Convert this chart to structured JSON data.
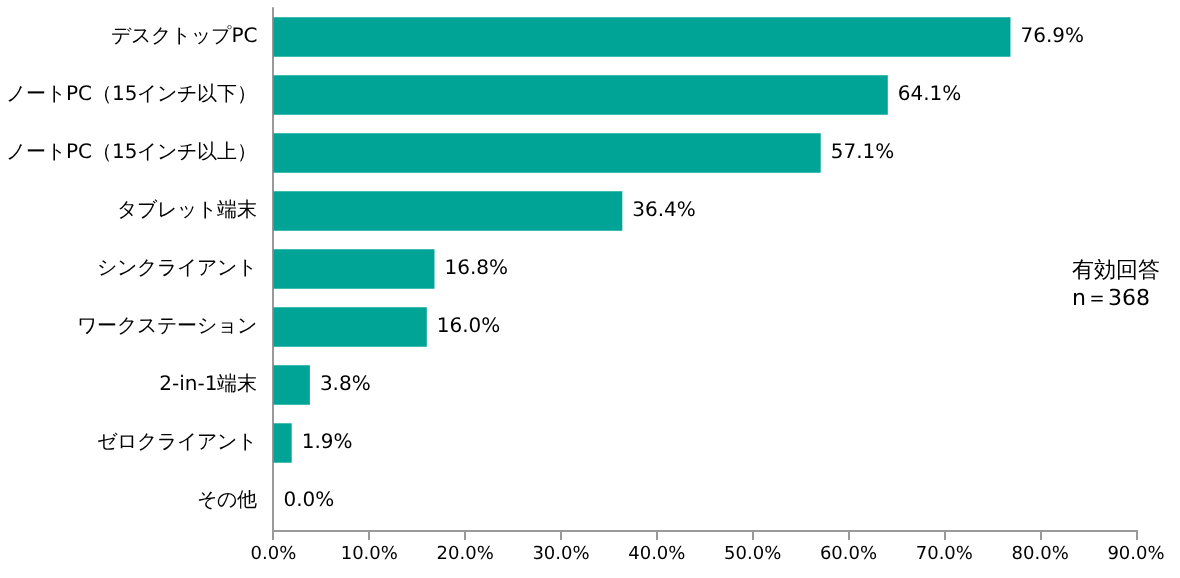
{
  "chart_data": {
    "type": "bar",
    "orientation": "horizontal",
    "categories": [
      "デスクトップPC",
      "ノートPC（15インチ以下）",
      "ノートPC（15インチ以上）",
      "タブレット端末",
      "シンクライアント",
      "ワークステーション",
      "2-in-1端末",
      "ゼロクライアント",
      "その他"
    ],
    "values": [
      76.9,
      64.1,
      57.1,
      36.4,
      16.8,
      16.0,
      3.8,
      1.9,
      0.0
    ],
    "value_labels": [
      "76.9%",
      "64.1%",
      "57.1%",
      "36.4%",
      "16.8%",
      "16.0%",
      "3.8%",
      "1.9%",
      "0.0%"
    ],
    "color": "#00a496",
    "xlim": [
      0,
      90
    ],
    "xticks": [
      {
        "value": 0,
        "label": "0.0%"
      },
      {
        "value": 10,
        "label": "10.0%"
      },
      {
        "value": 20,
        "label": "20.0%"
      },
      {
        "value": 30,
        "label": "30.0%"
      },
      {
        "value": 40,
        "label": "40.0%"
      },
      {
        "value": 50,
        "label": "50.0%"
      },
      {
        "value": 60,
        "label": "60.0%"
      },
      {
        "value": 70,
        "label": "70.0%"
      },
      {
        "value": 80,
        "label": "80.0%"
      },
      {
        "value": 90,
        "label": "90.0%"
      }
    ],
    "grid": false,
    "annotations": [
      "有効回答\nn＝368"
    ]
  }
}
